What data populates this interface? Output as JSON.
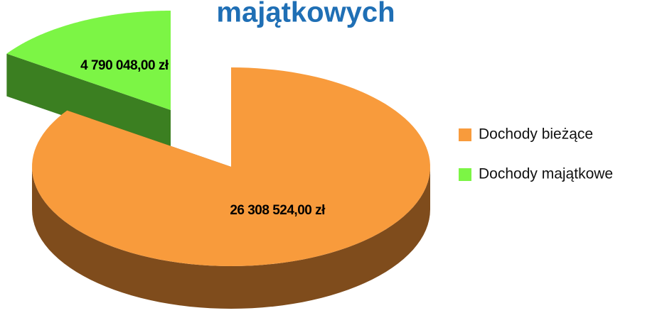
{
  "chart_data": {
    "type": "pie",
    "title": "majątkowych",
    "categories": [
      "Dochody bieżące",
      "Dochody majątkowe"
    ],
    "values": [
      26308524,
      4790048
    ],
    "value_labels": [
      "26 308 524,00 zł",
      "4 790 048,00 zł"
    ],
    "colors": [
      "#f89b3c",
      "#7cf545"
    ],
    "side_colors": [
      "#7f4c1c",
      "#3b7f21"
    ],
    "legend": "right"
  }
}
